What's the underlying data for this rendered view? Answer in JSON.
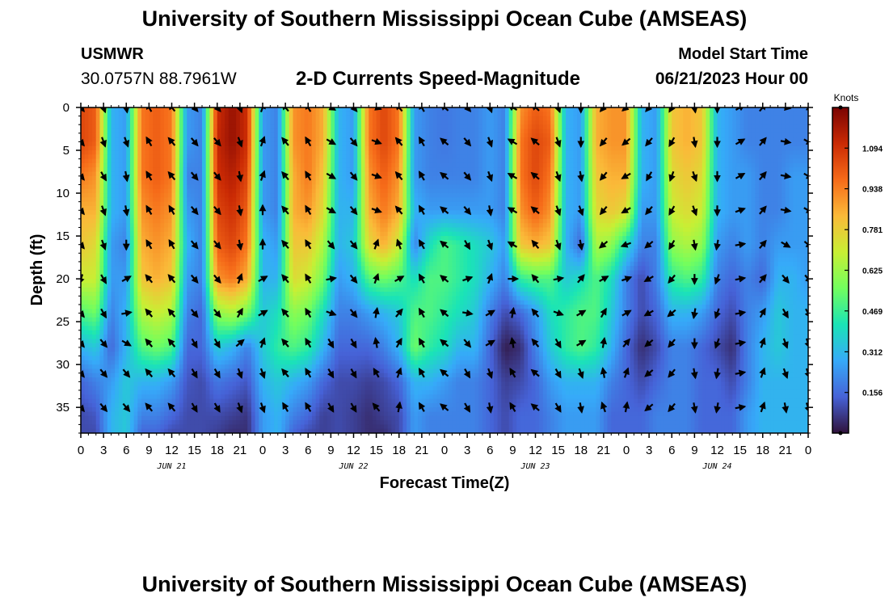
{
  "header": {
    "title": "University of Southern Mississippi Ocean Cube (AMSEAS)",
    "station_id": "USMWR",
    "station_coords": "30.0757N  88.7961W",
    "chart_title": "2-D Currents Speed-Magnitude",
    "model_label": "Model Start Time",
    "model_value": "06/21/2023 Hour 00"
  },
  "footer": {
    "title": "University of Southern Mississippi Ocean Cube (AMSEAS)"
  },
  "chart_data": {
    "type": "heatmap",
    "title": "2-D Currents Speed-Magnitude",
    "xlabel": "Forecast Time(Z)",
    "ylabel": "Depth (ft)",
    "x_unit": "forecast hour from model start",
    "xlim": [
      0,
      96
    ],
    "ylim": [
      0,
      38
    ],
    "y_inverted": true,
    "x_tick_hours": [
      0,
      3,
      6,
      9,
      12,
      15,
      18,
      21,
      24,
      27,
      30,
      33,
      36,
      39,
      42,
      45,
      48,
      51,
      54,
      57,
      60,
      63,
      66,
      69,
      72,
      75,
      78,
      81,
      84,
      87,
      90,
      93,
      96
    ],
    "x_tick_labels": [
      "0",
      "3",
      "6",
      "9",
      "12",
      "15",
      "18",
      "21",
      "0",
      "3",
      "6",
      "9",
      "12",
      "15",
      "18",
      "21",
      "0",
      "3",
      "6",
      "9",
      "12",
      "15",
      "18",
      "21",
      "0",
      "3",
      "6",
      "9",
      "12",
      "15",
      "18",
      "21",
      "0"
    ],
    "y_ticks": [
      0,
      5,
      10,
      15,
      20,
      25,
      30,
      35
    ],
    "y_tick_labels": [
      "0",
      "5",
      "10",
      "15",
      "20",
      "25",
      "30",
      "35"
    ],
    "date_labels": [
      {
        "label": "JUN 21",
        "hour": 12
      },
      {
        "label": "JUN 22",
        "hour": 36
      },
      {
        "label": "JUN 23",
        "hour": 60
      },
      {
        "label": "JUN 24",
        "hour": 84
      }
    ],
    "colorbar": {
      "unit": "Knots",
      "min": 0,
      "max": 1.25,
      "ticks": [
        0.156,
        0.312,
        0.469,
        0.625,
        0.781,
        0.938,
        1.094
      ],
      "tick_labels": [
        "0.156",
        "0.312",
        "0.469",
        "0.625",
        "0.781",
        "0.938",
        "1.094"
      ],
      "colors": [
        "#30123b",
        "#4662d7",
        "#36aaf9",
        "#1ae4b6",
        "#72fe5e",
        "#c8ef34",
        "#faba39",
        "#f66b19",
        "#ca2a04",
        "#7a0403"
      ]
    },
    "speed_hour_knots": [
      0,
      2,
      4,
      6,
      8,
      10,
      12,
      14,
      16,
      18,
      20,
      22,
      24,
      26,
      28,
      30,
      32,
      34,
      36,
      38,
      40,
      42,
      44,
      46,
      48,
      50,
      52,
      54,
      56,
      58,
      60,
      62,
      64,
      66,
      68,
      70,
      72,
      74,
      76,
      78,
      80,
      82,
      84,
      86,
      88,
      90,
      92,
      94,
      96
    ],
    "speed_depth_ft": [
      0,
      4,
      8,
      12,
      16,
      20,
      24,
      28,
      32,
      36,
      38
    ],
    "speed_knots": [
      [
        1.05,
        1.05,
        0.95,
        0.85,
        0.8,
        0.7,
        0.5,
        0.3,
        0.15,
        0.1,
        0.1
      ],
      [
        1.0,
        1.0,
        0.9,
        0.85,
        0.75,
        0.7,
        0.55,
        0.35,
        0.2,
        0.12,
        0.1
      ],
      [
        0.3,
        0.3,
        0.3,
        0.3,
        0.25,
        0.25,
        0.2,
        0.15,
        0.25,
        0.3,
        0.3
      ],
      [
        0.25,
        0.25,
        0.25,
        0.25,
        0.2,
        0.25,
        0.3,
        0.3,
        0.35,
        0.35,
        0.35
      ],
      [
        0.95,
        0.95,
        0.95,
        0.9,
        0.85,
        0.8,
        0.65,
        0.5,
        0.3,
        0.2,
        0.15
      ],
      [
        1.0,
        1.0,
        1.0,
        0.95,
        0.9,
        0.85,
        0.7,
        0.55,
        0.3,
        0.2,
        0.15
      ],
      [
        0.95,
        0.95,
        0.95,
        0.9,
        0.85,
        0.8,
        0.65,
        0.5,
        0.25,
        0.15,
        0.1
      ],
      [
        0.25,
        0.25,
        0.2,
        0.25,
        0.3,
        0.25,
        0.2,
        0.15,
        0.12,
        0.1,
        0.1
      ],
      [
        0.2,
        0.2,
        0.2,
        0.2,
        0.2,
        0.2,
        0.15,
        0.15,
        0.1,
        0.1,
        0.1
      ],
      [
        1.1,
        1.12,
        1.1,
        1.05,
        1.0,
        0.9,
        0.6,
        0.35,
        0.18,
        0.1,
        0.08
      ],
      [
        1.2,
        1.2,
        1.15,
        1.1,
        1.05,
        0.95,
        0.65,
        0.3,
        0.15,
        0.08,
        0.05
      ],
      [
        1.1,
        1.1,
        1.05,
        1.0,
        0.95,
        0.85,
        0.55,
        0.2,
        0.12,
        0.06,
        0.05
      ],
      [
        0.25,
        0.25,
        0.25,
        0.25,
        0.3,
        0.3,
        0.35,
        0.35,
        0.3,
        0.25,
        0.25
      ],
      [
        0.2,
        0.2,
        0.2,
        0.2,
        0.25,
        0.3,
        0.4,
        0.45,
        0.35,
        0.3,
        0.3
      ],
      [
        0.9,
        0.9,
        0.85,
        0.85,
        0.8,
        0.75,
        0.6,
        0.5,
        0.3,
        0.2,
        0.15
      ],
      [
        0.95,
        0.95,
        0.95,
        0.9,
        0.8,
        0.7,
        0.55,
        0.45,
        0.25,
        0.15,
        0.1
      ],
      [
        0.85,
        0.85,
        0.8,
        0.75,
        0.65,
        0.55,
        0.4,
        0.3,
        0.15,
        0.08,
        0.08
      ],
      [
        0.3,
        0.3,
        0.3,
        0.3,
        0.3,
        0.25,
        0.2,
        0.15,
        0.1,
        0.1,
        0.1
      ],
      [
        0.25,
        0.25,
        0.25,
        0.3,
        0.35,
        0.3,
        0.2,
        0.15,
        0.1,
        0.08,
        0.08
      ],
      [
        0.95,
        0.95,
        0.9,
        0.85,
        0.75,
        0.5,
        0.25,
        0.15,
        0.08,
        0.05,
        0.05
      ],
      [
        1.05,
        1.05,
        1.0,
        0.95,
        0.85,
        0.55,
        0.3,
        0.2,
        0.1,
        0.08,
        0.05
      ],
      [
        0.95,
        0.95,
        0.9,
        0.85,
        0.7,
        0.5,
        0.35,
        0.3,
        0.15,
        0.1,
        0.1
      ],
      [
        0.25,
        0.25,
        0.25,
        0.3,
        0.2,
        0.4,
        0.5,
        0.55,
        0.3,
        0.25,
        0.25
      ],
      [
        0.2,
        0.2,
        0.2,
        0.25,
        0.4,
        0.5,
        0.5,
        0.45,
        0.3,
        0.2,
        0.2
      ],
      [
        0.18,
        0.18,
        0.2,
        0.25,
        0.5,
        0.5,
        0.45,
        0.4,
        0.25,
        0.2,
        0.2
      ],
      [
        0.2,
        0.2,
        0.2,
        0.25,
        0.45,
        0.45,
        0.4,
        0.3,
        0.2,
        0.2,
        0.2
      ],
      [
        0.2,
        0.2,
        0.2,
        0.25,
        0.4,
        0.4,
        0.35,
        0.3,
        0.2,
        0.2,
        0.2
      ],
      [
        0.25,
        0.25,
        0.25,
        0.25,
        0.35,
        0.3,
        0.2,
        0.15,
        0.15,
        0.15,
        0.15
      ],
      [
        0.2,
        0.2,
        0.2,
        0.2,
        0.25,
        0.2,
        0.1,
        0.02,
        0.08,
        0.1,
        0.1
      ],
      [
        0.9,
        0.95,
        0.95,
        0.9,
        0.8,
        0.45,
        0.15,
        0.05,
        0.1,
        0.15,
        0.15
      ],
      [
        1.0,
        1.05,
        1.05,
        1.0,
        0.85,
        0.5,
        0.25,
        0.2,
        0.15,
        0.15,
        0.15
      ],
      [
        0.95,
        1.0,
        0.95,
        0.9,
        0.8,
        0.5,
        0.4,
        0.35,
        0.25,
        0.2,
        0.2
      ],
      [
        0.3,
        0.3,
        0.3,
        0.3,
        0.3,
        0.35,
        0.45,
        0.45,
        0.3,
        0.25,
        0.25
      ],
      [
        0.25,
        0.25,
        0.25,
        0.25,
        0.15,
        0.4,
        0.5,
        0.5,
        0.3,
        0.25,
        0.25
      ],
      [
        0.85,
        0.85,
        0.8,
        0.75,
        0.65,
        0.5,
        0.5,
        0.45,
        0.3,
        0.25,
        0.25
      ],
      [
        0.9,
        0.9,
        0.85,
        0.8,
        0.6,
        0.4,
        0.35,
        0.3,
        0.2,
        0.15,
        0.15
      ],
      [
        0.9,
        0.9,
        0.85,
        0.75,
        0.4,
        0.2,
        0.2,
        0.15,
        0.15,
        0.15,
        0.15
      ],
      [
        0.3,
        0.3,
        0.3,
        0.25,
        0.2,
        0.1,
        0.1,
        0.05,
        0.1,
        0.15,
        0.15
      ],
      [
        0.25,
        0.25,
        0.25,
        0.25,
        0.2,
        0.2,
        0.15,
        0.1,
        0.15,
        0.2,
        0.2
      ],
      [
        0.8,
        0.8,
        0.75,
        0.7,
        0.6,
        0.45,
        0.3,
        0.2,
        0.2,
        0.2,
        0.2
      ],
      [
        0.85,
        0.85,
        0.8,
        0.75,
        0.65,
        0.5,
        0.3,
        0.2,
        0.2,
        0.2,
        0.2
      ],
      [
        0.8,
        0.8,
        0.75,
        0.7,
        0.6,
        0.45,
        0.25,
        0.15,
        0.15,
        0.15,
        0.15
      ],
      [
        0.3,
        0.3,
        0.3,
        0.3,
        0.25,
        0.2,
        0.15,
        0.1,
        0.15,
        0.15,
        0.15
      ],
      [
        0.25,
        0.25,
        0.25,
        0.25,
        0.2,
        0.15,
        0.1,
        0.05,
        0.1,
        0.15,
        0.15
      ],
      [
        0.2,
        0.2,
        0.25,
        0.25,
        0.25,
        0.2,
        0.2,
        0.2,
        0.2,
        0.25,
        0.25
      ],
      [
        0.2,
        0.2,
        0.2,
        0.2,
        0.2,
        0.15,
        0.25,
        0.3,
        0.3,
        0.3,
        0.3
      ],
      [
        0.2,
        0.2,
        0.2,
        0.2,
        0.25,
        0.3,
        0.35,
        0.35,
        0.3,
        0.3,
        0.3
      ],
      [
        0.2,
        0.2,
        0.25,
        0.25,
        0.25,
        0.3,
        0.3,
        0.3,
        0.3,
        0.3,
        0.3
      ],
      [
        0.2,
        0.2,
        0.25,
        0.25,
        0.25,
        0.25,
        0.3,
        0.3,
        0.3,
        0.3,
        0.3
      ]
    ],
    "arrow_hours": [
      0,
      3,
      6,
      9,
      12,
      15,
      18,
      21,
      24,
      27,
      30,
      33,
      36,
      39,
      42,
      45,
      48,
      51,
      54,
      57,
      60,
      63,
      66,
      69,
      72,
      75,
      78,
      81,
      84,
      87,
      90,
      93,
      96
    ],
    "arrow_depths_ft": [
      0,
      4,
      8,
      12,
      16,
      20,
      24,
      27.5,
      31,
      35
    ],
    "arrow_directions_deg": [
      [
        140,
        140,
        140,
        140,
        140,
        200,
        140,
        140,
        140,
        140
      ],
      [
        160,
        160,
        150,
        160,
        160,
        150,
        150,
        140,
        140,
        140
      ],
      [
        170,
        160,
        170,
        170,
        180,
        60,
        80,
        120,
        140,
        140
      ],
      [
        330,
        330,
        330,
        330,
        330,
        320,
        320,
        320,
        320,
        320
      ],
      [
        320,
        320,
        320,
        330,
        330,
        320,
        320,
        320,
        320,
        320
      ],
      [
        140,
        140,
        140,
        140,
        140,
        140,
        140,
        150,
        150,
        150
      ],
      [
        140,
        140,
        140,
        140,
        140,
        140,
        140,
        150,
        150,
        150
      ],
      [
        160,
        160,
        170,
        170,
        170,
        20,
        30,
        50,
        160,
        160
      ],
      [
        20,
        20,
        20,
        0,
        0,
        60,
        60,
        20,
        160,
        160
      ],
      [
        320,
        320,
        320,
        320,
        320,
        320,
        320,
        320,
        320,
        330
      ],
      [
        330,
        330,
        330,
        330,
        330,
        330,
        330,
        330,
        330,
        330
      ],
      [
        120,
        120,
        120,
        120,
        140,
        80,
        110,
        150,
        150,
        150
      ],
      [
        140,
        140,
        140,
        140,
        140,
        140,
        140,
        150,
        150,
        150
      ],
      [
        110,
        110,
        110,
        110,
        20,
        20,
        10,
        350,
        330,
        320
      ],
      [
        320,
        320,
        320,
        320,
        340,
        60,
        40,
        30,
        20,
        10
      ],
      [
        330,
        330,
        330,
        330,
        330,
        330,
        330,
        330,
        330,
        330
      ],
      [
        310,
        310,
        310,
        310,
        310,
        310,
        310,
        310,
        310,
        310
      ],
      [
        140,
        140,
        140,
        140,
        150,
        70,
        100,
        140,
        150,
        150
      ],
      [
        160,
        160,
        160,
        170,
        160,
        20,
        60,
        60,
        160,
        170
      ],
      [
        300,
        300,
        300,
        300,
        300,
        90,
        10,
        350,
        330,
        330
      ],
      [
        310,
        310,
        310,
        310,
        320,
        320,
        320,
        320,
        310,
        310
      ],
      [
        160,
        160,
        160,
        160,
        160,
        80,
        110,
        150,
        150,
        150
      ],
      [
        180,
        180,
        170,
        160,
        170,
        40,
        60,
        60,
        160,
        170
      ],
      [
        220,
        220,
        220,
        220,
        230,
        60,
        30,
        10,
        350,
        340
      ],
      [
        230,
        230,
        240,
        240,
        250,
        70,
        60,
        40,
        20,
        10
      ],
      [
        220,
        220,
        210,
        220,
        230,
        240,
        240,
        230,
        230,
        230
      ],
      [
        210,
        210,
        200,
        210,
        210,
        220,
        230,
        220,
        220,
        220
      ],
      [
        170,
        170,
        160,
        160,
        170,
        180,
        190,
        180,
        170,
        170
      ],
      [
        180,
        180,
        180,
        180,
        190,
        200,
        200,
        200,
        190,
        190
      ],
      [
        60,
        60,
        60,
        70,
        80,
        80,
        80,
        80,
        80,
        80
      ],
      [
        40,
        40,
        40,
        40,
        40,
        40,
        30,
        20,
        20,
        20
      ],
      [
        100,
        100,
        100,
        100,
        120,
        140,
        150,
        160,
        160,
        170
      ],
      [
        120,
        120,
        120,
        120,
        130,
        140,
        150,
        160,
        160,
        160
      ]
    ]
  }
}
